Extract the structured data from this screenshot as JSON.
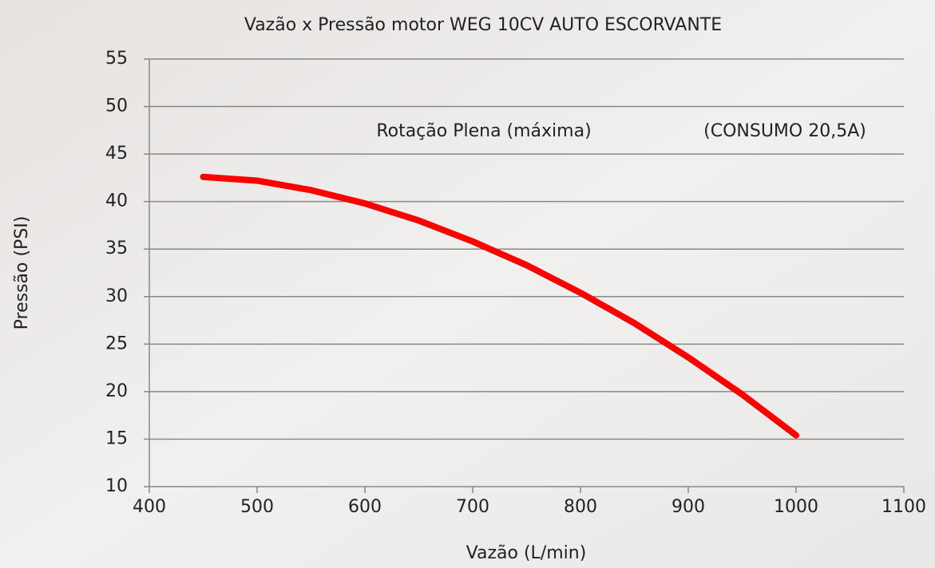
{
  "chart_data": {
    "type": "line",
    "title": "Vazão x Pressão motor WEG 10CV AUTO ESCORVANTE",
    "annotations": [
      "Rotação Plena (máxima)",
      "(CONSUMO 20,5A)"
    ],
    "x_label": "Vazão (L/min)",
    "y_label": "Pressão (PSI)",
    "x": [
      450,
      500,
      550,
      600,
      650,
      700,
      750,
      800,
      850,
      900,
      950,
      1000
    ],
    "series": [
      {
        "name": "Rotação Plena (máxima)",
        "color": "#ff0000",
        "values": [
          42.6,
          42.2,
          41.2,
          39.8,
          38.0,
          35.8,
          33.3,
          30.4,
          27.2,
          23.6,
          19.7,
          15.4
        ]
      }
    ],
    "xlim": [
      400,
      1100
    ],
    "xticks": [
      400,
      500,
      600,
      700,
      800,
      900,
      1000,
      1100
    ],
    "ylim": [
      10,
      55
    ],
    "yticks": [
      10,
      15,
      20,
      25,
      30,
      35,
      40,
      45,
      50,
      55
    ],
    "grid": true
  }
}
